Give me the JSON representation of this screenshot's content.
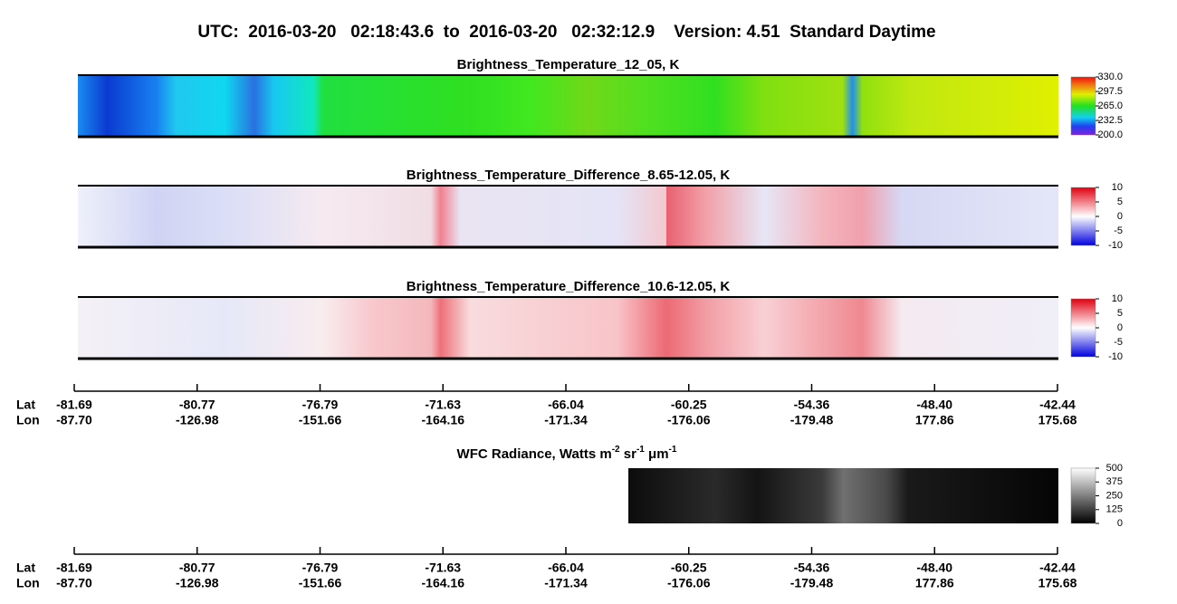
{
  "title": "UTC:  2016-03-20   02:18:43.6  to  2016-03-20   02:32:12.9    Version: 4.51  Standard Daytime",
  "panels": [
    {
      "title": "Brightness_Temperature_12_05, K",
      "colorbar": [
        "330.0",
        "297.5",
        "265.0",
        "232.5",
        "200.0"
      ]
    },
    {
      "title": "Brightness_Temperature_Difference_8.65-12.05, K",
      "colorbar": [
        "10",
        "5",
        "0",
        "-5",
        "-10"
      ]
    },
    {
      "title": "Brightness_Temperature_Difference_10.6-12.05, K",
      "colorbar": [
        "10",
        "5",
        "0",
        "-5",
        "-10"
      ]
    }
  ],
  "wfc": {
    "title": [
      "WFC Radiance, Watts m",
      "-2",
      " sr",
      "-1",
      " μm",
      "-1"
    ],
    "colorbar": [
      "500",
      "375",
      "250",
      "125",
      "0"
    ]
  },
  "axes": [
    {
      "lat_label": "Lat",
      "lon_label": "Lon",
      "lat": [
        "-81.69",
        "-80.77",
        "-76.79",
        "-71.63",
        "-66.04",
        "-60.25",
        "-54.36",
        "-48.40",
        "-42.44"
      ],
      "lon": [
        "-87.70",
        "-126.98",
        "-151.66",
        "-164.16",
        "-171.34",
        "-176.06",
        "-179.48",
        "177.86",
        "175.68"
      ]
    },
    {
      "lat_label": "Lat",
      "lon_label": "Lon",
      "lat": [
        "-81.69",
        "-80.77",
        "-76.79",
        "-71.63",
        "-66.04",
        "-60.25",
        "-54.36",
        "-48.40",
        "-42.44"
      ],
      "lon": [
        "-87.70",
        "-126.98",
        "-151.66",
        "-164.16",
        "-171.34",
        "-176.06",
        "-179.48",
        "177.86",
        "175.68"
      ]
    }
  ]
}
